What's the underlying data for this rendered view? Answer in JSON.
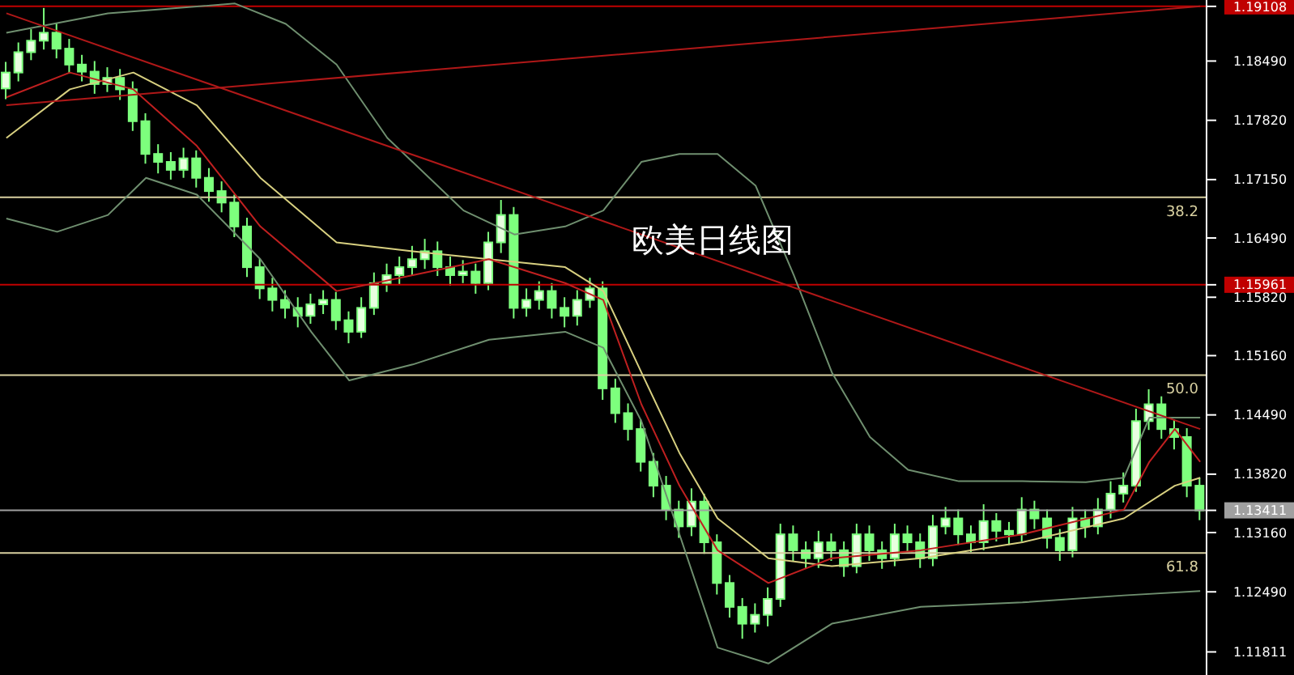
{
  "chart_data": {
    "type": "candlestick",
    "title": "欧美日线图",
    "color": "#7dff7d",
    "categories": [
      null,
      null,
      null,
      null,
      null,
      null,
      null,
      null,
      null,
      null,
      null,
      null,
      null,
      null,
      null,
      null,
      null,
      null,
      null,
      null,
      null,
      null,
      null,
      null,
      null,
      null,
      null,
      null,
      null,
      null,
      null,
      null,
      null,
      null,
      null,
      null,
      null,
      null,
      null,
      null,
      null,
      null,
      null,
      null,
      null,
      null,
      null,
      null,
      null,
      null,
      null,
      null,
      null,
      null,
      null,
      null,
      null,
      null,
      null,
      null,
      null,
      null,
      null,
      null,
      null,
      null,
      null,
      null,
      null,
      null,
      null,
      null,
      null,
      null,
      null,
      null,
      null,
      null,
      null,
      null,
      null,
      null,
      null,
      null,
      null,
      null,
      null,
      null,
      null,
      null,
      null,
      null,
      null,
      null,
      null
    ],
    "ohlc": [
      [
        1.1818,
        1.1848,
        1.1806,
        1.1836
      ],
      [
        1.1836,
        1.187,
        1.1826,
        1.1859
      ],
      [
        1.1859,
        1.1885,
        1.185,
        1.1872
      ],
      [
        1.1872,
        1.1909,
        1.1862,
        1.1881
      ],
      [
        1.1881,
        1.1892,
        1.1852,
        1.1863
      ],
      [
        1.1863,
        1.1874,
        1.1835,
        1.1845
      ],
      [
        1.1845,
        1.1856,
        1.1826,
        1.1837
      ],
      [
        1.1837,
        1.1849,
        1.1812,
        1.1823
      ],
      [
        1.1823,
        1.1842,
        1.1814,
        1.183
      ],
      [
        1.183,
        1.184,
        1.1805,
        1.1817
      ],
      [
        1.1817,
        1.1826,
        1.177,
        1.1781
      ],
      [
        1.1781,
        1.179,
        1.1733,
        1.1744
      ],
      [
        1.1744,
        1.1755,
        1.1722,
        1.1735
      ],
      [
        1.1735,
        1.1746,
        1.1715,
        1.1726
      ],
      [
        1.1726,
        1.1751,
        1.1717,
        1.1739
      ],
      [
        1.1739,
        1.1748,
        1.1706,
        1.1717
      ],
      [
        1.1717,
        1.1728,
        1.169,
        1.1702
      ],
      [
        1.1702,
        1.1713,
        1.1678,
        1.1689
      ],
      [
        1.1689,
        1.1698,
        1.165,
        1.1662
      ],
      [
        1.1662,
        1.1672,
        1.1605,
        1.1616
      ],
      [
        1.1616,
        1.1626,
        1.158,
        1.1592
      ],
      [
        1.1592,
        1.1604,
        1.1566,
        1.1579
      ],
      [
        1.1579,
        1.159,
        1.1558,
        1.157
      ],
      [
        1.157,
        1.1582,
        1.1548,
        1.1561
      ],
      [
        1.1561,
        1.1586,
        1.1552,
        1.1574
      ],
      [
        1.1574,
        1.159,
        1.1563,
        1.1579
      ],
      [
        1.1579,
        1.1588,
        1.1545,
        1.1556
      ],
      [
        1.1556,
        1.1566,
        1.153,
        1.1543
      ],
      [
        1.1543,
        1.1582,
        1.1536,
        1.157
      ],
      [
        1.157,
        1.161,
        1.1562,
        1.1598
      ],
      [
        1.1598,
        1.162,
        1.1588,
        1.1607
      ],
      [
        1.1607,
        1.1628,
        1.1596,
        1.1616
      ],
      [
        1.1616,
        1.164,
        1.1606,
        1.1625
      ],
      [
        1.1625,
        1.1648,
        1.1614,
        1.1634
      ],
      [
        1.1634,
        1.1645,
        1.1606,
        1.1616
      ],
      [
        1.1616,
        1.1628,
        1.1595,
        1.1607
      ],
      [
        1.1607,
        1.1624,
        1.1598,
        1.1611
      ],
      [
        1.1611,
        1.162,
        1.1586,
        1.1598
      ],
      [
        1.1598,
        1.1656,
        1.159,
        1.1644
      ],
      [
        1.1644,
        1.1692,
        1.1632,
        1.1675
      ],
      [
        1.1675,
        1.1684,
        1.1558,
        1.157
      ],
      [
        1.157,
        1.1592,
        1.156,
        1.1579
      ],
      [
        1.1579,
        1.16,
        1.1568,
        1.1589
      ],
      [
        1.1589,
        1.1598,
        1.1558,
        1.157
      ],
      [
        1.157,
        1.1582,
        1.1548,
        1.1561
      ],
      [
        1.1561,
        1.159,
        1.155,
        1.1579
      ],
      [
        1.1579,
        1.1604,
        1.157,
        1.1592
      ],
      [
        1.1592,
        1.16,
        1.1466,
        1.1479
      ],
      [
        1.1479,
        1.149,
        1.144,
        1.1451
      ],
      [
        1.1451,
        1.1462,
        1.142,
        1.1433
      ],
      [
        1.1433,
        1.1444,
        1.1385,
        1.1396
      ],
      [
        1.1396,
        1.1406,
        1.1356,
        1.1369
      ],
      [
        1.1369,
        1.138,
        1.133,
        1.1342
      ],
      [
        1.1342,
        1.1352,
        1.131,
        1.1323
      ],
      [
        1.1323,
        1.1366,
        1.1312,
        1.1351
      ],
      [
        1.1351,
        1.136,
        1.1292,
        1.1305
      ],
      [
        1.1305,
        1.1314,
        1.1246,
        1.1259
      ],
      [
        1.1259,
        1.1268,
        1.122,
        1.1232
      ],
      [
        1.1232,
        1.1242,
        1.1196,
        1.1213
      ],
      [
        1.1213,
        1.1236,
        1.1203,
        1.1223
      ],
      [
        1.1223,
        1.1254,
        1.121,
        1.1241
      ],
      [
        1.1241,
        1.1326,
        1.1232,
        1.1314
      ],
      [
        1.1314,
        1.1324,
        1.1284,
        1.1296
      ],
      [
        1.1296,
        1.1306,
        1.1275,
        1.1287
      ],
      [
        1.1287,
        1.1318,
        1.1276,
        1.1305
      ],
      [
        1.1305,
        1.1315,
        1.1284,
        1.1296
      ],
      [
        1.1296,
        1.1306,
        1.1266,
        1.1278
      ],
      [
        1.1278,
        1.1326,
        1.127,
        1.1314
      ],
      [
        1.1314,
        1.1324,
        1.1284,
        1.1296
      ],
      [
        1.1296,
        1.1306,
        1.1275,
        1.1287
      ],
      [
        1.1287,
        1.1326,
        1.1278,
        1.1314
      ],
      [
        1.1314,
        1.1324,
        1.1294,
        1.1305
      ],
      [
        1.1305,
        1.1315,
        1.1276,
        1.1287
      ],
      [
        1.1287,
        1.1336,
        1.1278,
        1.1323
      ],
      [
        1.1323,
        1.1345,
        1.1314,
        1.1332
      ],
      [
        1.1332,
        1.1342,
        1.1302,
        1.1314
      ],
      [
        1.1314,
        1.1324,
        1.1294,
        1.1305
      ],
      [
        1.1305,
        1.1348,
        1.1296,
        1.1329
      ],
      [
        1.1329,
        1.1338,
        1.1306,
        1.1318
      ],
      [
        1.1318,
        1.1328,
        1.1302,
        1.1314
      ],
      [
        1.1314,
        1.1356,
        1.1306,
        1.1342
      ],
      [
        1.1342,
        1.1352,
        1.132,
        1.1332
      ],
      [
        1.1332,
        1.1342,
        1.1298,
        1.131
      ],
      [
        1.131,
        1.132,
        1.1284,
        1.1296
      ],
      [
        1.1296,
        1.1345,
        1.1288,
        1.1332
      ],
      [
        1.1332,
        1.1342,
        1.131,
        1.1323
      ],
      [
        1.1323,
        1.1355,
        1.1314,
        1.1342
      ],
      [
        1.1342,
        1.1374,
        1.1332,
        1.136
      ],
      [
        1.136,
        1.1384,
        1.135,
        1.1369
      ],
      [
        1.1369,
        1.1456,
        1.1362,
        1.1442
      ],
      [
        1.1442,
        1.1478,
        1.1432,
        1.1461
      ],
      [
        1.1461,
        1.147,
        1.1422,
        1.1433
      ],
      [
        1.1433,
        1.1444,
        1.141,
        1.1424
      ],
      [
        1.1424,
        1.1434,
        1.1356,
        1.1369
      ],
      [
        1.1369,
        1.1378,
        1.133,
        1.1341
      ]
    ],
    "ylim": [
      1.1155,
      1.1918
    ],
    "yticks": [
      1.19108,
      {
        "value": 1.1849,
        "label": "1.18490"
      },
      {
        "value": 1.1782,
        "label": "1.17820"
      },
      {
        "value": 1.1715,
        "label": "1.17150"
      },
      {
        "value": 1.1649,
        "label": "1.16490"
      },
      1.15961,
      {
        "value": 1.1582,
        "label": "1.15820"
      },
      {
        "value": 1.1516,
        "label": "1.15160"
      },
      {
        "value": 1.1449,
        "label": "1.14490"
      },
      {
        "value": 1.1382,
        "label": "1.13820"
      },
      1.13411,
      {
        "value": 1.1316,
        "label": "1.13160"
      },
      {
        "value": 1.1249,
        "label": "1.12490"
      },
      1.11811
    ],
    "tick_labels": "y",
    "series": [
      {
        "type": "line",
        "color": "#6f8f6f",
        "values": [
          1.1881,
          null,
          null,
          null,
          null,
          null,
          null,
          null,
          1.1903,
          null,
          null,
          null,
          null,
          null,
          null,
          null,
          null,
          null,
          1.1914,
          null,
          null,
          null,
          1.1891,
          null,
          null,
          null,
          1.1845,
          null,
          null,
          null,
          1.1762,
          null,
          null,
          null,
          null,
          null,
          1.168,
          null,
          null,
          null,
          1.1653,
          null,
          null,
          null,
          1.1662,
          null,
          null,
          1.168,
          null,
          null,
          1.1735,
          null,
          null,
          1.1744,
          null,
          null,
          1.1744,
          null,
          null,
          1.1708,
          null,
          null,
          1.1607,
          null,
          null,
          1.1497,
          null,
          null,
          1.1424,
          null,
          null,
          1.1387,
          null,
          null,
          null,
          1.1374,
          null,
          null,
          null,
          null,
          1.1374,
          null,
          null,
          null,
          null,
          1.1373,
          null,
          null,
          1.1378,
          null,
          1.1446,
          null,
          null,
          null,
          1.1446
        ]
      },
      {
        "type": "line",
        "color": "#6f8f6f",
        "values": [
          1.1671,
          null,
          null,
          null,
          1.1656,
          null,
          null,
          null,
          1.1675,
          null,
          null,
          1.1717,
          null,
          null,
          null,
          1.1698,
          null,
          null,
          null,
          null,
          1.1625,
          null,
          null,
          null,
          1.1543,
          null,
          null,
          1.1488,
          null,
          null,
          null,
          null,
          1.1506,
          null,
          null,
          null,
          null,
          null,
          1.1534,
          null,
          null,
          null,
          null,
          null,
          1.1543,
          null,
          null,
          1.1525,
          null,
          null,
          1.1442,
          null,
          null,
          1.1314,
          null,
          null,
          1.1186,
          null,
          null,
          null,
          1.1168,
          null,
          null,
          null,
          null,
          1.1213,
          null,
          null,
          null,
          null,
          null,
          null,
          1.1232,
          null,
          null,
          null,
          null,
          null,
          null,
          null,
          1.1237,
          null,
          null,
          null,
          null,
          null,
          null,
          null,
          1.1245,
          null,
          null,
          null,
          null,
          null,
          1.125
        ]
      },
      {
        "type": "line",
        "color": "#d8d080",
        "values": [
          1.1762,
          null,
          null,
          null,
          null,
          1.1817,
          null,
          null,
          null,
          null,
          1.1836,
          null,
          null,
          null,
          null,
          1.1799,
          null,
          null,
          null,
          null,
          1.1717,
          null,
          null,
          null,
          null,
          null,
          1.1644,
          null,
          null,
          null,
          null,
          null,
          1.1634,
          null,
          null,
          null,
          null,
          null,
          1.1625,
          null,
          null,
          null,
          null,
          null,
          1.1616,
          null,
          null,
          1.1589,
          null,
          null,
          1.1497,
          null,
          null,
          1.1406,
          null,
          null,
          1.1332,
          null,
          null,
          null,
          1.1287,
          null,
          null,
          null,
          null,
          1.1278,
          null,
          null,
          null,
          null,
          null,
          null,
          1.1287,
          null,
          null,
          null,
          null,
          null,
          null,
          null,
          1.1305,
          null,
          null,
          null,
          null,
          null,
          null,
          null,
          1.1332,
          null,
          null,
          null,
          1.1369,
          null,
          1.1378
        ]
      },
      {
        "type": "line",
        "color": "#c02020",
        "values": [
          1.1808,
          null,
          null,
          null,
          null,
          1.1836,
          null,
          null,
          null,
          null,
          1.1817,
          null,
          null,
          null,
          null,
          1.1753,
          null,
          null,
          null,
          null,
          1.1662,
          null,
          null,
          null,
          null,
          null,
          1.1589,
          null,
          null,
          null,
          null,
          null,
          1.1607,
          null,
          null,
          null,
          null,
          null,
          1.1625,
          null,
          null,
          null,
          null,
          null,
          1.1598,
          null,
          null,
          1.1579,
          null,
          null,
          1.1461,
          null,
          null,
          1.1369,
          null,
          null,
          1.1296,
          null,
          null,
          null,
          1.1259,
          null,
          null,
          null,
          null,
          1.1287,
          null,
          null,
          null,
          null,
          null,
          null,
          1.1296,
          null,
          null,
          null,
          null,
          null,
          null,
          null,
          1.1314,
          null,
          null,
          null,
          null,
          null,
          null,
          null,
          1.1342,
          null,
          1.1396,
          null,
          1.1433,
          null,
          1.1396
        ]
      },
      {
        "type": "line",
        "color": "#b01818",
        "values": [
          1.1903,
          null,
          null,
          null,
          null,
          null,
          null,
          null,
          null,
          null,
          null,
          null,
          null,
          null,
          null,
          null,
          null,
          null,
          null,
          null,
          null,
          null,
          null,
          null,
          null,
          null,
          null,
          null,
          null,
          null,
          null,
          null,
          null,
          null,
          null,
          null,
          null,
          null,
          null,
          null,
          null,
          null,
          null,
          null,
          null,
          null,
          null,
          null,
          null,
          null,
          null,
          null,
          null,
          null,
          null,
          null,
          null,
          null,
          null,
          null,
          null,
          null,
          null,
          null,
          null,
          null,
          null,
          null,
          null,
          null,
          null,
          null,
          null,
          null,
          null,
          null,
          null,
          null,
          null,
          null,
          null,
          null,
          null,
          null,
          null,
          null,
          null,
          null,
          null,
          null,
          null,
          null,
          null,
          null,
          1.1433
        ]
      },
      {
        "type": "line",
        "color": "#b01818",
        "values": [
          1.1799,
          null,
          null,
          null,
          null,
          null,
          null,
          null,
          null,
          null,
          null,
          null,
          null,
          null,
          null,
          null,
          null,
          null,
          null,
          null,
          null,
          null,
          null,
          null,
          null,
          null,
          null,
          null,
          null,
          null,
          null,
          null,
          null,
          null,
          null,
          null,
          null,
          null,
          null,
          null,
          null,
          null,
          null,
          null,
          null,
          null,
          null,
          null,
          null,
          null,
          null,
          null,
          null,
          null,
          null,
          null,
          null,
          null,
          null,
          null,
          null,
          null,
          null,
          null,
          null,
          null,
          null,
          null,
          null,
          null,
          null,
          null,
          null,
          null,
          null,
          null,
          null,
          null,
          null,
          null,
          null,
          null,
          null,
          null,
          null,
          null,
          null,
          null,
          null,
          null,
          null,
          null,
          null,
          null,
          1.1911
        ]
      }
    ],
    "ref_lines": [
      {
        "axis": "y",
        "value": 1.19108,
        "label": null,
        "color": "#c00000"
      },
      {
        "axis": "y",
        "value": 1.1695,
        "label": null,
        "color": "#d8d0a0"
      },
      {
        "axis": "y",
        "value": 1.15961,
        "label": null,
        "color": "#c00000"
      },
      {
        "axis": "y",
        "value": 1.1494,
        "label": null,
        "color": "#d8d0a0"
      },
      {
        "axis": "y",
        "value": 1.13411,
        "label": null,
        "color": "#a0a0a0"
      },
      {
        "axis": "y",
        "value": 1.1293,
        "label": null,
        "color": "#d8d0a0"
      }
    ],
    "annotations": [
      {
        "text": "38.2",
        "y": 1.1695
      },
      {
        "text": "50.0",
        "y": 1.1494
      },
      {
        "text": "61.8",
        "y": 1.1293
      }
    ]
  }
}
